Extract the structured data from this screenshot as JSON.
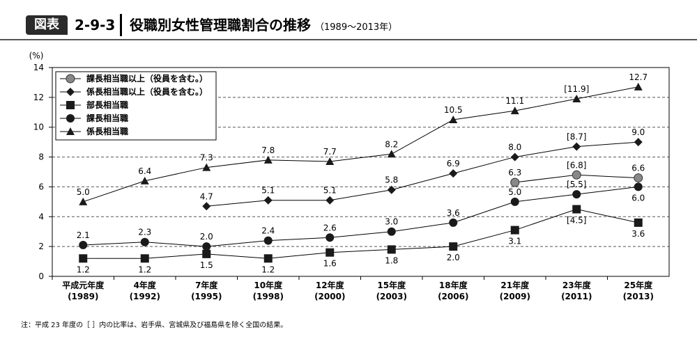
{
  "header": {
    "badge": "図表",
    "figure_number": "2-9-3",
    "title": "役職別女性管理職割合の推移",
    "subtitle": "（1989～2013年）"
  },
  "footnote": "注：平成 23 年度の［ ］内の比率は、岩手県、宮城県及び福島県を除く全国の結果。",
  "chart_data": {
    "type": "line",
    "ylabel": "(%)",
    "ylim": [
      0,
      14
    ],
    "yticks": [
      0,
      2,
      4,
      6,
      8,
      10,
      12,
      14
    ],
    "grid": "horizontal dashed",
    "legend_position": "top-left",
    "categories": [
      {
        "label": "平成元年度",
        "year": "(1989)"
      },
      {
        "label": "4年度",
        "year": "(1992)"
      },
      {
        "label": "7年度",
        "year": "(1995)"
      },
      {
        "label": "10年度",
        "year": "(1998)"
      },
      {
        "label": "12年度",
        "year": "(2000)"
      },
      {
        "label": "15年度",
        "year": "(2003)"
      },
      {
        "label": "18年度",
        "year": "(2006)"
      },
      {
        "label": "21年度",
        "year": "(2009)"
      },
      {
        "label": "23年度",
        "year": "(2011)"
      },
      {
        "label": "25年度",
        "year": "(2013)"
      }
    ],
    "series": [
      {
        "name": "課長相当職以上（役員を含む。）",
        "marker": "circle-gray",
        "values": [
          null,
          null,
          null,
          null,
          null,
          null,
          null,
          6.3,
          6.8,
          6.6
        ],
        "labels": [
          "",
          "",
          "",
          "",
          "",
          "",
          "",
          "6.3",
          "[6.8]",
          "6.6"
        ],
        "label_pos": [
          "",
          "",
          "",
          "",
          "",
          "",
          "",
          "above",
          "above",
          "above"
        ]
      },
      {
        "name": "係長相当職以上（役員を含む。）",
        "marker": "diamond",
        "values": [
          null,
          null,
          4.7,
          5.1,
          5.1,
          5.8,
          6.9,
          8.0,
          8.7,
          9.0
        ],
        "labels": [
          "",
          "",
          "4.7",
          "5.1",
          "5.1",
          "5.8",
          "6.9",
          "8.0",
          "[8.7]",
          "9.0"
        ],
        "label_pos": [
          "",
          "",
          "above",
          "above",
          "above",
          "above",
          "above",
          "above",
          "above",
          "above"
        ]
      },
      {
        "name": "部長相当職",
        "marker": "square",
        "values": [
          1.2,
          1.2,
          1.5,
          1.2,
          1.6,
          1.8,
          2.0,
          3.1,
          4.5,
          3.6
        ],
        "labels": [
          "1.2",
          "1.2",
          "1.5",
          "1.2",
          "1.6",
          "1.8",
          "2.0",
          "3.1",
          "[4.5]",
          "3.6"
        ],
        "label_pos": [
          "below",
          "below",
          "below",
          "below",
          "below",
          "below",
          "below",
          "below",
          "below",
          "below"
        ]
      },
      {
        "name": "課長相当職",
        "marker": "circle",
        "values": [
          2.1,
          2.3,
          2.0,
          2.4,
          2.6,
          3.0,
          3.6,
          5.0,
          5.5,
          6.0
        ],
        "labels": [
          "2.1",
          "2.3",
          "2.0",
          "2.4",
          "2.6",
          "3.0",
          "3.6",
          "5.0",
          "[5.5]",
          "6.0"
        ],
        "label_pos": [
          "above",
          "above",
          "above",
          "above",
          "above",
          "above",
          "above",
          "above",
          "above",
          "below"
        ]
      },
      {
        "name": "係長相当職",
        "marker": "triangle",
        "values": [
          5.0,
          6.4,
          7.3,
          7.8,
          7.7,
          8.2,
          10.5,
          11.1,
          11.9,
          12.7
        ],
        "labels": [
          "5.0",
          "6.4",
          "7.3",
          "7.8",
          "7.7",
          "8.2",
          "10.5",
          "11.1",
          "[11.9]",
          "12.7"
        ],
        "label_pos": [
          "above",
          "above",
          "above",
          "above",
          "above",
          "above",
          "above",
          "above",
          "above",
          "above"
        ]
      }
    ]
  }
}
